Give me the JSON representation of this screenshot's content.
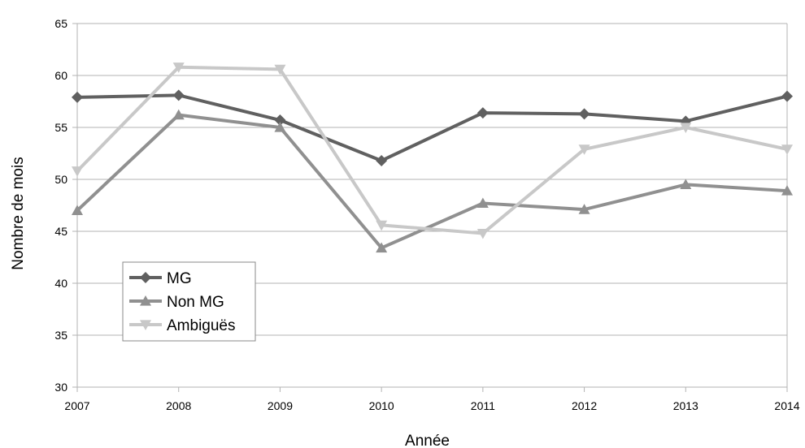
{
  "chart_data": {
    "type": "line",
    "title": "",
    "xlabel": "Année",
    "ylabel": "Nombre de mois",
    "x": [
      "2007",
      "2008",
      "2009",
      "2010",
      "2011",
      "2012",
      "2013",
      "2014"
    ],
    "ylim": [
      30,
      65
    ],
    "yticks": [
      "30",
      "35",
      "40",
      "45",
      "50",
      "55",
      "60",
      "65"
    ],
    "grid": true,
    "legend_position": "bottom-left",
    "series": [
      {
        "name": "MG",
        "marker": "diamond",
        "color": "#606060",
        "values": [
          57.9,
          58.1,
          55.7,
          51.8,
          56.4,
          56.3,
          55.6,
          58.0
        ]
      },
      {
        "name": "Non MG",
        "marker": "triangle-up",
        "color": "#909090",
        "values": [
          47.0,
          56.2,
          55.0,
          43.4,
          47.7,
          47.1,
          49.5,
          48.9
        ]
      },
      {
        "name": "Ambiguës",
        "marker": "triangle-down",
        "color": "#c8c8c8",
        "values": [
          50.8,
          60.8,
          60.6,
          45.6,
          44.8,
          52.9,
          55.0,
          52.9
        ]
      }
    ]
  }
}
